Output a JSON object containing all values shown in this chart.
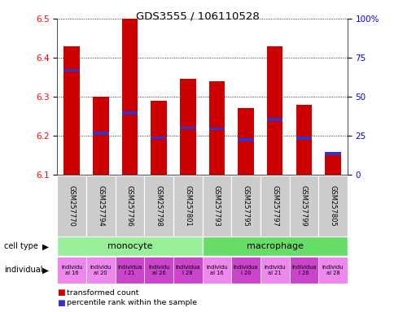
{
  "title": "GDS3555 / 106110528",
  "samples": [
    "GSM257770",
    "GSM257794",
    "GSM257796",
    "GSM257798",
    "GSM257801",
    "GSM257793",
    "GSM257795",
    "GSM257797",
    "GSM257799",
    "GSM257805"
  ],
  "transformed_counts": [
    6.43,
    6.3,
    6.5,
    6.29,
    6.345,
    6.34,
    6.27,
    6.43,
    6.28,
    6.15
  ],
  "percentile_ranks_pct": [
    67,
    26.5,
    39.5,
    23.8,
    30,
    29.5,
    22.5,
    35.5,
    23.5,
    13.5
  ],
  "ymin": 6.1,
  "ymax": 6.5,
  "cell_types": [
    {
      "label": "monocyte",
      "start": 0,
      "end": 5,
      "color": "#99EE99"
    },
    {
      "label": "macrophage",
      "start": 5,
      "end": 10,
      "color": "#66DD66"
    }
  ],
  "individuals": [
    {
      "label": "individu\nal 16",
      "color": "#EE88EE"
    },
    {
      "label": "individu\nal 20",
      "color": "#EE88EE"
    },
    {
      "label": "individua\nl 21",
      "color": "#CC44CC"
    },
    {
      "label": "individu\nal 26",
      "color": "#CC44CC"
    },
    {
      "label": "individua\nl 28",
      "color": "#CC44CC"
    },
    {
      "label": "individu\nal 16",
      "color": "#EE88EE"
    },
    {
      "label": "individua\nl 20",
      "color": "#CC44CC"
    },
    {
      "label": "individu\nal 21",
      "color": "#EE88EE"
    },
    {
      "label": "individua\nl 26",
      "color": "#CC44CC"
    },
    {
      "label": "individu\nal 28",
      "color": "#EE88EE"
    }
  ],
  "bar_color_red": "#CC0000",
  "bar_color_blue": "#3333CC",
  "bar_width": 0.55,
  "right_yticks_pct": [
    0,
    25,
    50,
    75,
    100
  ],
  "right_ylabels": [
    "0",
    "25",
    "50",
    "75",
    "100%"
  ],
  "left_yticks": [
    6.1,
    6.2,
    6.3,
    6.4,
    6.5
  ],
  "legend_red": "transformed count",
  "legend_blue": "percentile rank within the sample",
  "xlabel_cell_type": "cell type",
  "xlabel_individual": "individual",
  "gsm_bg_color": "#CCCCCC",
  "gsm_bg_color2": "#BBBBBB"
}
